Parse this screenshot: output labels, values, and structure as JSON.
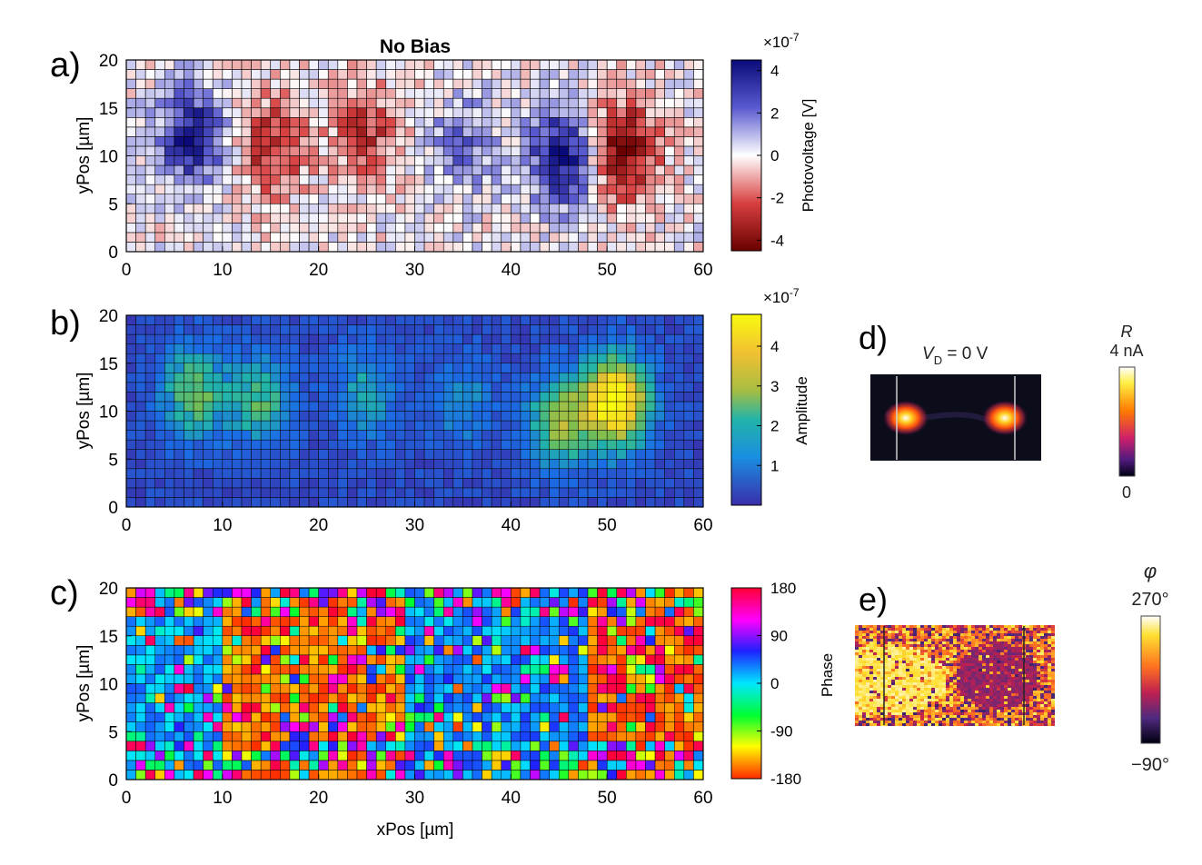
{
  "chart_data": [
    {
      "id": "a",
      "type": "heatmap",
      "panel_label": "a)",
      "title": "No Bias",
      "xlabel": "",
      "ylabel": "yPos [µm]",
      "xlim": [
        0,
        60
      ],
      "ylim": [
        0,
        20
      ],
      "x_ticks": [
        0,
        10,
        20,
        30,
        40,
        50,
        60
      ],
      "y_ticks": [
        0,
        5,
        10,
        15,
        20
      ],
      "grid": "pixel-grid",
      "colormap": "red-white-blue (diverging)",
      "colorbar": {
        "label": "Photovoltage [V]",
        "exponent": "×10",
        "exponent_power": "-7",
        "ticks": [
          4,
          2,
          0,
          -2,
          -4
        ],
        "range": [
          -4.5,
          4.5
        ]
      },
      "features": [
        {
          "x": 7,
          "y": 12,
          "value": 4,
          "kind": "blue"
        },
        {
          "x": 15,
          "y": 11,
          "value": -3,
          "kind": "red"
        },
        {
          "x": 25,
          "y": 12.5,
          "value": -2.5,
          "kind": "red"
        },
        {
          "x": 35,
          "y": 11,
          "value": 2,
          "kind": "blue"
        },
        {
          "x": 45.5,
          "y": 10,
          "value": 4.5,
          "kind": "blue"
        },
        {
          "x": 51.5,
          "y": 10.5,
          "value": -4.5,
          "kind": "red"
        }
      ]
    },
    {
      "id": "b",
      "type": "heatmap",
      "panel_label": "b)",
      "title": "",
      "xlabel": "",
      "ylabel": "yPos [µm]",
      "xlim": [
        0,
        60
      ],
      "ylim": [
        0,
        20
      ],
      "x_ticks": [
        0,
        10,
        20,
        30,
        40,
        50,
        60
      ],
      "y_ticks": [
        0,
        5,
        10,
        15,
        20
      ],
      "grid": "pixel-grid",
      "colormap": "parula",
      "colorbar": {
        "label": "Amplitude",
        "exponent": "×10",
        "exponent_power": "-7",
        "ticks": [
          4,
          3,
          2,
          1
        ],
        "range": [
          0,
          4.8
        ]
      },
      "features": [
        {
          "x": 7,
          "y": 12,
          "value": 2.3
        },
        {
          "x": 14,
          "y": 11,
          "value": 2.0
        },
        {
          "x": 25,
          "y": 12,
          "value": 1.5
        },
        {
          "x": 35,
          "y": 11,
          "value": 1.2
        },
        {
          "x": 45,
          "y": 9,
          "value": 2.6
        },
        {
          "x": 51,
          "y": 11,
          "value": 4.5
        }
      ]
    },
    {
      "id": "c",
      "type": "heatmap",
      "panel_label": "c)",
      "title": "",
      "xlabel": "xPos [µm]",
      "ylabel": "yPos [µm]",
      "xlim": [
        0,
        60
      ],
      "ylim": [
        0,
        20
      ],
      "x_ticks": [
        0,
        10,
        20,
        30,
        40,
        50,
        60
      ],
      "y_ticks": [
        0,
        5,
        10,
        15,
        20
      ],
      "grid": "pixel-grid",
      "colormap": "hsv (cyclic)",
      "colorbar": {
        "label": "",
        "ticks": [
          180,
          90,
          0,
          -90,
          -180
        ],
        "range": [
          -180,
          180
        ]
      },
      "regions": [
        {
          "x_from": 0,
          "x_to": 10,
          "phase": 20
        },
        {
          "x_from": 10,
          "x_to": 29,
          "phase": -160
        },
        {
          "x_from": 29,
          "x_to": 48,
          "phase": 30
        },
        {
          "x_from": 48,
          "x_to": 60,
          "phase": -165
        }
      ]
    }
  ],
  "panel_d": {
    "label": "d)",
    "voltage_label": "V",
    "voltage_sub": "D",
    "voltage_value": " = 0 V",
    "colorbar_symbol": "R",
    "colorbar_max": "4 nA",
    "colorbar_min": "0",
    "colormap": "hot"
  },
  "panel_e": {
    "label": "e)",
    "side_label": "Phase",
    "colorbar_symbol": "φ",
    "colorbar_max": "270°",
    "colorbar_min": "−90°",
    "colormap": "cyclic dark-red-yellow-white"
  }
}
